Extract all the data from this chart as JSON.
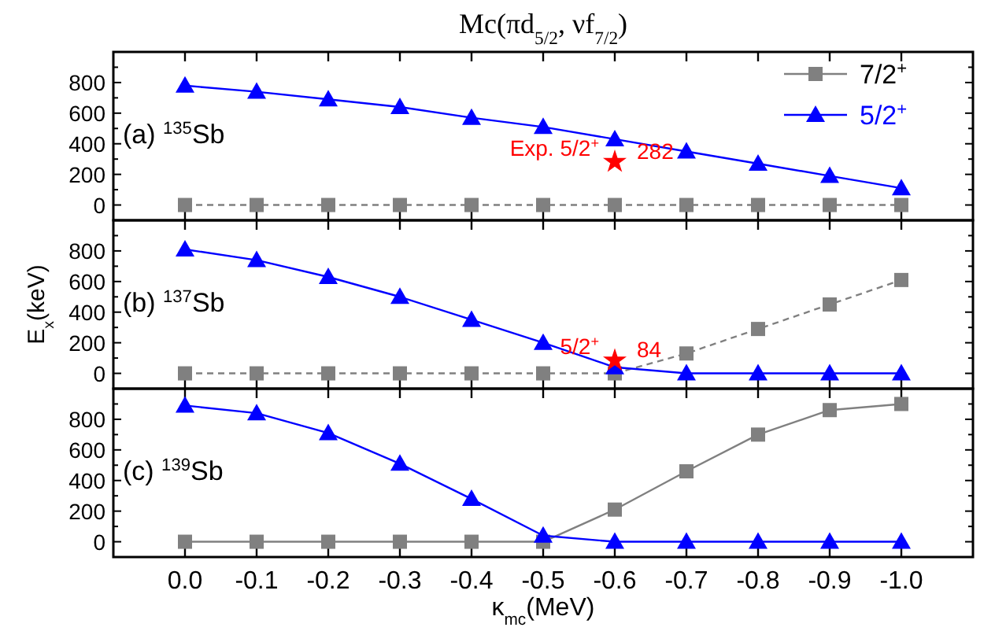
{
  "chart_data": [
    {
      "type": "line",
      "title": "Mc(πd$_{5/2}$, νf$_{7/2}$)",
      "xlim": [
        0.1,
        -1.1
      ],
      "ylim": [
        -100,
        1000
      ],
      "tick_labels": "y",
      "legend": "top right",
      "xticks": [
        {
          "value": 0,
          "label": null
        },
        {
          "value": -0.1,
          "label": null
        },
        {
          "value": -0.2,
          "label": null
        },
        {
          "value": -0.3,
          "label": null
        },
        {
          "value": -0.4,
          "label": null
        },
        {
          "value": -0.5,
          "label": null
        },
        {
          "value": -0.6,
          "label": null
        },
        {
          "value": -0.7,
          "label": null
        },
        {
          "value": -0.8,
          "label": null
        },
        {
          "value": -0.9,
          "label": null
        },
        {
          "value": -1,
          "label": null
        }
      ],
      "yticks": [
        0,
        {
          "value": 100,
          "label": null
        },
        200,
        {
          "value": 300,
          "label": null
        },
        400,
        {
          "value": 500,
          "label": null
        },
        600,
        {
          "value": 700,
          "label": null
        },
        800,
        {
          "value": 900,
          "label": null
        }
      ],
      "x": [
        0,
        -0.1,
        -0.2,
        -0.3,
        -0.4,
        -0.5,
        -0.6,
        -0.7,
        -0.8,
        -0.9,
        -1
      ],
      "series": [
        {
          "name": "7/2$^{+}$",
          "color": "#808080",
          "marker": "square",
          "line_style": "dashed",
          "values": [
            0,
            0,
            0,
            0,
            0,
            0,
            0,
            0,
            0,
            0,
            0
          ]
        },
        {
          "name": "5/2$^{+}$",
          "color": "#0000ff",
          "marker": "triangle",
          "line_style": "solid",
          "values": [
            780,
            740,
            690,
            640,
            570,
            510,
            430,
            350,
            270,
            190,
            110
          ]
        },
        {
          "color": "#ff0000",
          "marker": "star",
          "x": [
            -0.6
          ],
          "values": [
            282
          ],
          "value_labels": [
            "282"
          ]
        }
      ],
      "annotations": [
        "(a) $^{135}$Sb",
        {
          "text": "Exp. 5/2$^{+}$",
          "x": -0.6,
          "y": 282
        }
      ]
    },
    {
      "type": "line",
      "ylabel": "E$_{x}$(keV)",
      "xlim": [
        0.1,
        -1.1
      ],
      "ylim": [
        -100,
        1000
      ],
      "tick_labels": "y",
      "xticks": [
        {
          "value": 0,
          "label": null
        },
        {
          "value": -0.1,
          "label": null
        },
        {
          "value": -0.2,
          "label": null
        },
        {
          "value": -0.3,
          "label": null
        },
        {
          "value": -0.4,
          "label": null
        },
        {
          "value": -0.5,
          "label": null
        },
        {
          "value": -0.6,
          "label": null
        },
        {
          "value": -0.7,
          "label": null
        },
        {
          "value": -0.8,
          "label": null
        },
        {
          "value": -0.9,
          "label": null
        },
        {
          "value": -1,
          "label": null
        }
      ],
      "yticks": [
        0,
        {
          "value": 100,
          "label": null
        },
        200,
        {
          "value": 300,
          "label": null
        },
        400,
        {
          "value": 500,
          "label": null
        },
        600,
        {
          "value": 700,
          "label": null
        },
        800,
        {
          "value": 900,
          "label": null
        }
      ],
      "x": [
        0,
        -0.1,
        -0.2,
        -0.3,
        -0.4,
        -0.5,
        -0.6,
        -0.7,
        -0.8,
        -0.9,
        -1
      ],
      "series": [
        {
          "color": "#808080",
          "marker": "square",
          "line_style": "dashed",
          "values": [
            0,
            0,
            0,
            0,
            0,
            0,
            0,
            130,
            290,
            450,
            610
          ]
        },
        {
          "color": "#0000ff",
          "marker": "triangle",
          "line_style": "solid",
          "values": [
            810,
            740,
            630,
            500,
            350,
            200,
            40,
            0,
            0,
            0,
            0
          ]
        },
        {
          "color": "#ff0000",
          "marker": "star",
          "x": [
            -0.6
          ],
          "values": [
            84
          ],
          "value_labels": [
            "84"
          ]
        }
      ],
      "annotations": [
        "(b) $^{137}$Sb",
        {
          "text": "5/2$^{+}$",
          "x": -0.6,
          "y": 84
        }
      ]
    },
    {
      "type": "line",
      "xlabel": "κ$_{mc}$(MeV)",
      "xlim": [
        0.1,
        -1.1
      ],
      "ylim": [
        -100,
        1000
      ],
      "xticks": [
        {
          "value": 0,
          "label": "0.0"
        },
        -0.1,
        -0.2,
        -0.3,
        -0.4,
        -0.5,
        -0.6,
        -0.7,
        -0.8,
        -0.9,
        {
          "value": -1,
          "label": "-1.0"
        }
      ],
      "yticks": [
        0,
        {
          "value": 100,
          "label": null
        },
        200,
        {
          "value": 300,
          "label": null
        },
        400,
        {
          "value": 500,
          "label": null
        },
        600,
        {
          "value": 700,
          "label": null
        },
        800,
        {
          "value": 900,
          "label": null
        }
      ],
      "x": [
        0,
        -0.1,
        -0.2,
        -0.3,
        -0.4,
        -0.5,
        -0.6,
        -0.7,
        -0.8,
        -0.9,
        -1
      ],
      "series": [
        {
          "color": "#808080",
          "marker": "square",
          "line_style": "solid",
          "values": [
            0,
            0,
            0,
            0,
            0,
            0,
            210,
            460,
            700,
            860,
            900
          ]
        },
        {
          "color": "#0000ff",
          "marker": "triangle",
          "line_style": "solid",
          "values": [
            890,
            840,
            710,
            510,
            280,
            40,
            0,
            0,
            0,
            0,
            0
          ]
        }
      ],
      "annotations": [
        "(c) $^{139}$Sb"
      ]
    }
  ]
}
